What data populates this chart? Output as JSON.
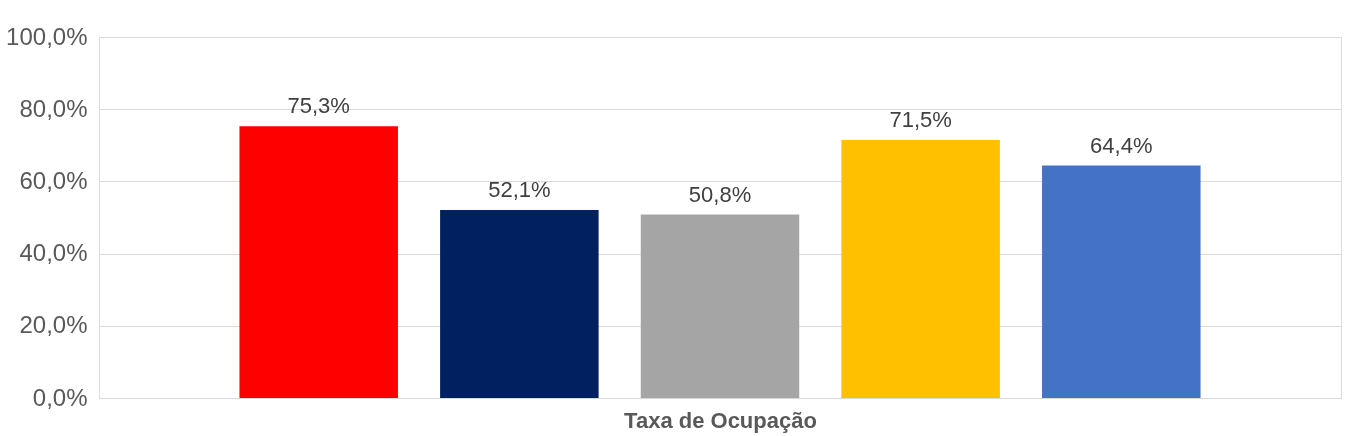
{
  "chart_data": {
    "type": "bar",
    "xlabel": "Taxa de Ocupação",
    "categories": [
      null,
      null,
      null,
      null,
      null
    ],
    "values": [
      75.3,
      52.1,
      50.8,
      71.5,
      64.4
    ],
    "colors": [
      "#ff0000",
      "#002060",
      "#a5a5a5",
      "#ffc000",
      "#4472c4"
    ],
    "value_labels": [
      "75,3%",
      "52,1%",
      "50,8%",
      "71,5%",
      "64,4%"
    ],
    "ylim": [
      0,
      100
    ],
    "yticks": [
      {
        "value": 0,
        "label": "0,0%"
      },
      {
        "value": 20,
        "label": "20,0%"
      },
      {
        "value": 40,
        "label": "40,0%"
      },
      {
        "value": 60,
        "label": "60,0%"
      },
      {
        "value": 80,
        "label": "80,0%"
      },
      {
        "value": 100,
        "label": "100,0%"
      }
    ],
    "grid": "y",
    "legend": false,
    "tick_labels": "y"
  }
}
